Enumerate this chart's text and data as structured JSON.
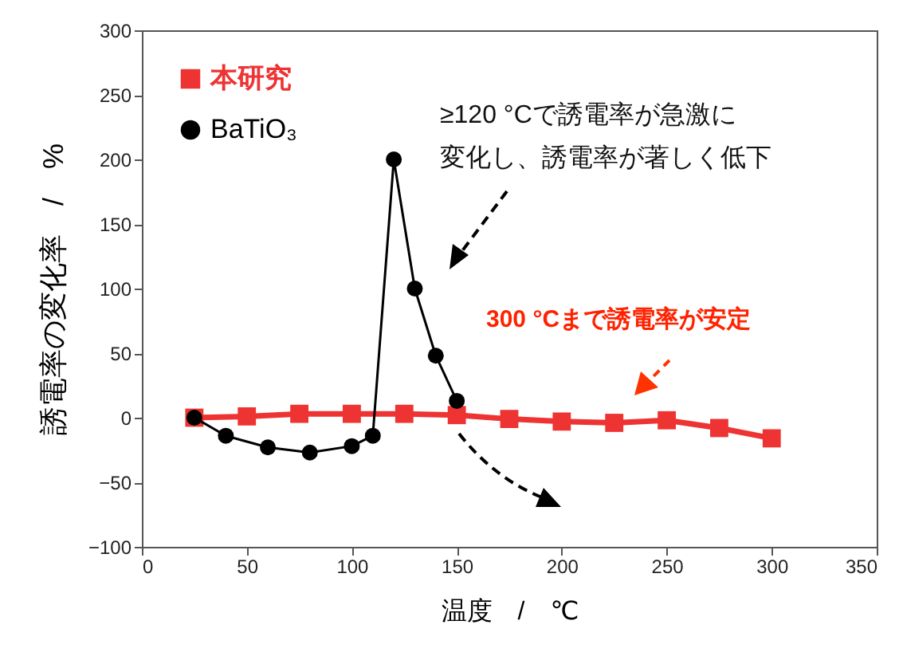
{
  "chart_data": {
    "type": "line",
    "xlabel": "温度　/　℃",
    "ylabel": "誘電率の変化率　/　%",
    "xlim": [
      0,
      350
    ],
    "xticks": [
      0,
      50,
      100,
      150,
      200,
      250,
      300,
      350
    ],
    "ylim": [
      -100,
      300
    ],
    "yticks": [
      -100,
      -50,
      0,
      50,
      100,
      150,
      200,
      250,
      300
    ],
    "grid": false,
    "legend": "top left",
    "annotations": [
      "≥120 °Cで誘電率が急激に",
      "変化し、誘電率が著しく低下",
      "300 °Cまで誘電率が安定"
    ],
    "series": [
      {
        "name": "本研究",
        "color": "#ee3333",
        "marker": "square",
        "x": [
          25,
          50,
          75,
          100,
          125,
          150,
          175,
          200,
          225,
          250,
          275,
          300
        ],
        "values": [
          0,
          1,
          3,
          3,
          3,
          2,
          -1,
          -3,
          -4,
          -2,
          -8,
          -16
        ]
      },
      {
        "name": "BaTiO₃",
        "color": "#000000",
        "marker": "circle",
        "x": [
          25,
          40,
          60,
          80,
          100,
          110,
          120,
          130,
          140,
          150
        ],
        "values": [
          0,
          -14,
          -23,
          -27,
          -22,
          -14,
          200,
          100,
          48,
          13
        ]
      }
    ]
  }
}
